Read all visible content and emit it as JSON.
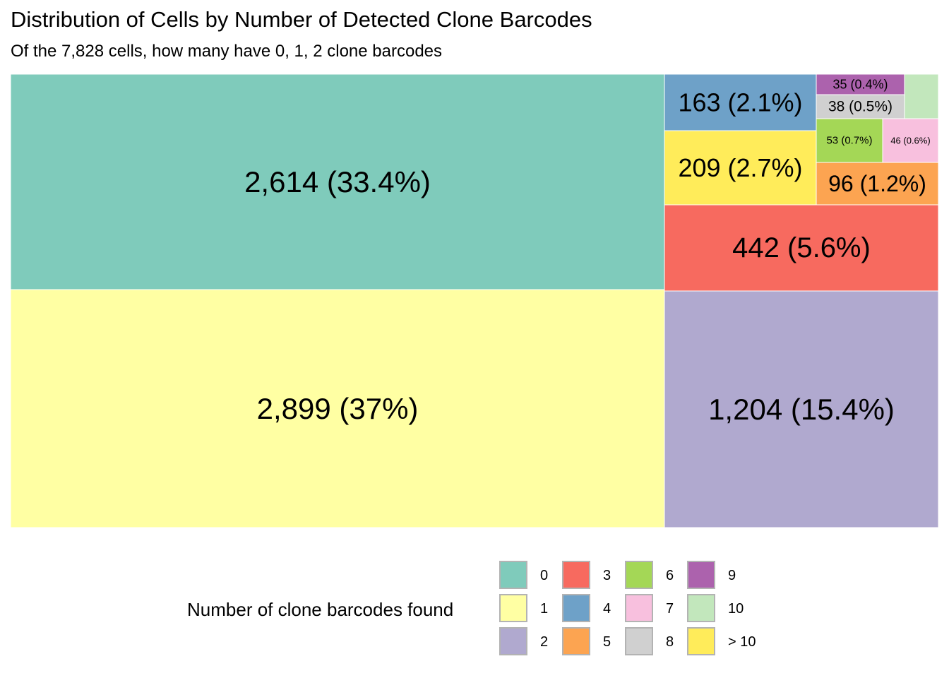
{
  "chart_data": {
    "type": "treemap",
    "title": "Distribution of Cells by Number of Detected Clone Barcodes",
    "subtitle": "Of the 7,828 cells, how many have 0, 1, 2 clone barcodes",
    "legend_title": "Number of clone barcodes found",
    "legend_position": "bottom",
    "categories": [
      "0",
      "1",
      "2",
      "3",
      "4",
      "5",
      "6",
      "7",
      "8",
      "9",
      "10",
      "> 10"
    ],
    "colors": [
      "#7fcbbb",
      "#ffffa3",
      "#b0a9cf",
      "#f76a5f",
      "#6ea1c8",
      "#fca451",
      "#a4d756",
      "#f8c0de",
      "#d0d0d0",
      "#ac62ad",
      "#c2e7bc",
      "#ffec5a"
    ],
    "values": [
      2614,
      2899,
      1204,
      442,
      163,
      96,
      53,
      46,
      38,
      35,
      null,
      209
    ],
    "labels": [
      "2,614 (33.4%)",
      "2,899 (37%)",
      "1,204 (15.4%)",
      "442 (5.6%)",
      "163 (2.1%)",
      "96 (1.2%)",
      "53 (0.7%)",
      "46 (0.6%)",
      "38 (0.5%)",
      "35 (0.4%)",
      "",
      "209 (2.7%)"
    ]
  }
}
